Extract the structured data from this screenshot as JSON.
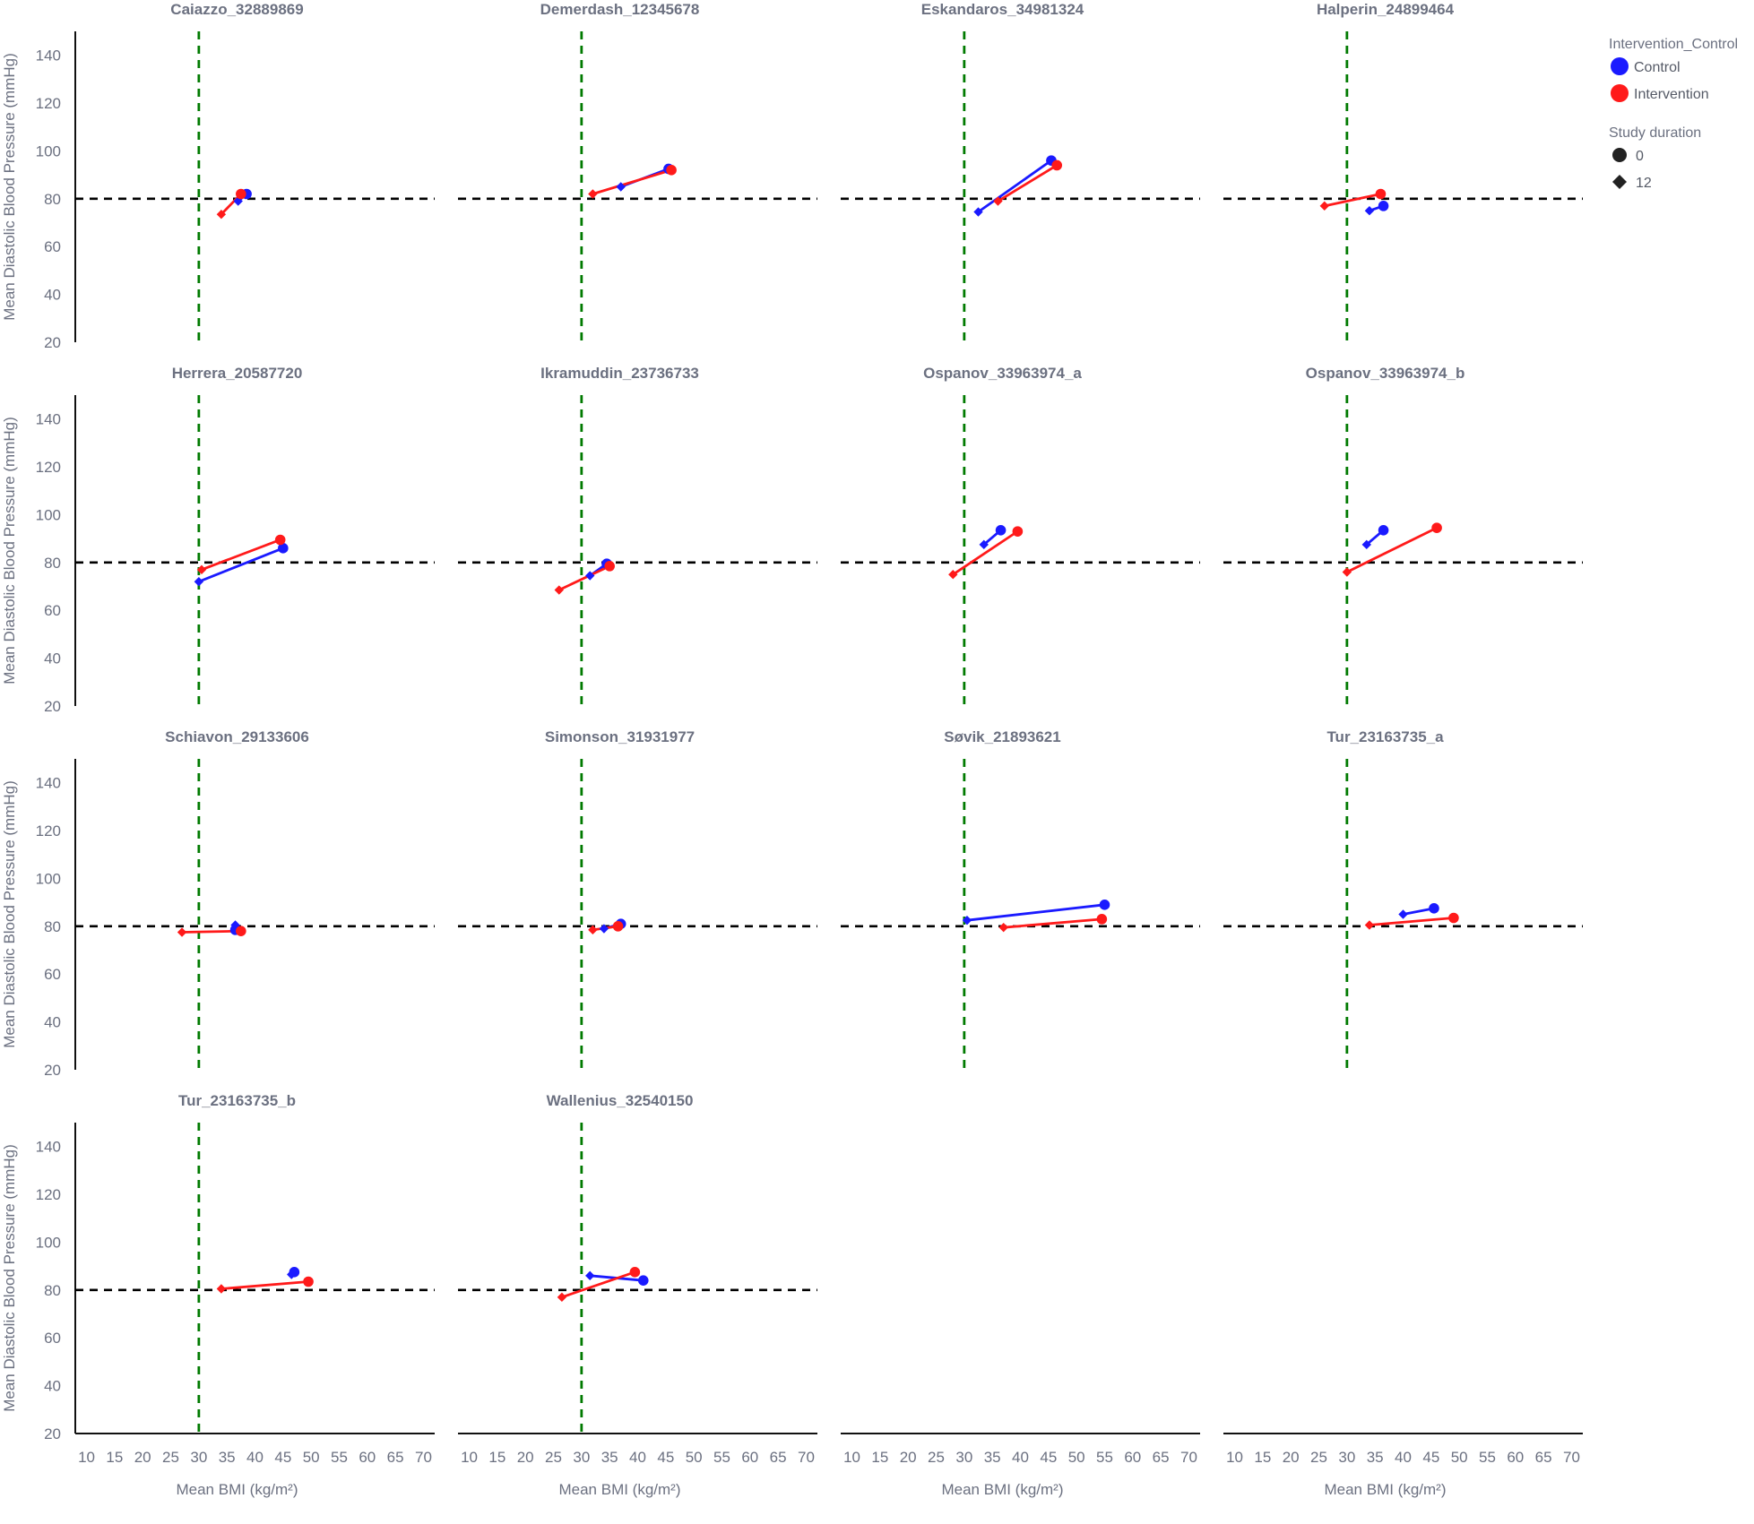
{
  "chart_data": {
    "type": "line",
    "facet_layout": "4 columns x 4 rows",
    "xlabel": "Mean BMI (kg/m²)",
    "ylabel": "Mean Diastolic Blood Pressure (mmHg)",
    "xlim": [
      8,
      72
    ],
    "ylim": [
      20,
      150
    ],
    "x_ticks": [
      10,
      15,
      20,
      25,
      30,
      35,
      40,
      45,
      50,
      55,
      60,
      65,
      70
    ],
    "y_ticks": [
      20,
      40,
      60,
      80,
      100,
      120,
      140
    ],
    "reference_lines": {
      "horizontal": {
        "y": 80,
        "color": "#000000",
        "style": "dashed"
      },
      "vertical": {
        "x": 30,
        "color": "#007a00",
        "style": "dashed"
      }
    },
    "grid": false,
    "legend_placement": "top-right",
    "legend": {
      "color_title": "Intervention_Control",
      "color_entries": [
        {
          "label": "Control",
          "color": "#1a1aff"
        },
        {
          "label": "Intervention",
          "color": "#ff1a1a"
        }
      ],
      "shape_title": "Study duration",
      "shape_entries": [
        {
          "label": "0",
          "shape": "circle"
        },
        {
          "label": "12",
          "shape": "diamond"
        }
      ]
    },
    "panels": [
      {
        "title": "Caiazzo_32889869",
        "series": [
          {
            "group": "Control",
            "points": [
              {
                "duration": "0",
                "x": 38.5,
                "y": 82
              },
              {
                "duration": "12",
                "x": 37,
                "y": 79
              }
            ]
          },
          {
            "group": "Intervention",
            "points": [
              {
                "duration": "0",
                "x": 37.5,
                "y": 82
              },
              {
                "duration": "12",
                "x": 34,
                "y": 73.5
              }
            ]
          }
        ]
      },
      {
        "title": "Demerdash_12345678",
        "series": [
          {
            "group": "Control",
            "points": [
              {
                "duration": "0",
                "x": 45.5,
                "y": 92.5
              },
              {
                "duration": "12",
                "x": 37,
                "y": 85
              }
            ]
          },
          {
            "group": "Intervention",
            "points": [
              {
                "duration": "0",
                "x": 46,
                "y": 92
              },
              {
                "duration": "12",
                "x": 32,
                "y": 82
              }
            ]
          }
        ]
      },
      {
        "title": "Eskandaros_34981324",
        "series": [
          {
            "group": "Control",
            "points": [
              {
                "duration": "0",
                "x": 45.5,
                "y": 96
              },
              {
                "duration": "12",
                "x": 32.5,
                "y": 74.5
              }
            ]
          },
          {
            "group": "Intervention",
            "points": [
              {
                "duration": "0",
                "x": 46.5,
                "y": 94
              },
              {
                "duration": "12",
                "x": 36,
                "y": 79
              }
            ]
          }
        ]
      },
      {
        "title": "Halperin_24899464",
        "series": [
          {
            "group": "Control",
            "points": [
              {
                "duration": "0",
                "x": 36.5,
                "y": 77
              },
              {
                "duration": "12",
                "x": 34,
                "y": 75
              }
            ]
          },
          {
            "group": "Intervention",
            "points": [
              {
                "duration": "0",
                "x": 36,
                "y": 82
              },
              {
                "duration": "12",
                "x": 26,
                "y": 77
              }
            ]
          }
        ]
      },
      {
        "title": "Herrera_20587720",
        "series": [
          {
            "group": "Control",
            "points": [
              {
                "duration": "0",
                "x": 45,
                "y": 86
              },
              {
                "duration": "12",
                "x": 30,
                "y": 72
              }
            ]
          },
          {
            "group": "Intervention",
            "points": [
              {
                "duration": "0",
                "x": 44.5,
                "y": 89.5
              },
              {
                "duration": "12",
                "x": 30.5,
                "y": 77
              }
            ]
          }
        ]
      },
      {
        "title": "Ikramuddin_23736733",
        "series": [
          {
            "group": "Control",
            "points": [
              {
                "duration": "0",
                "x": 34.5,
                "y": 79.5
              },
              {
                "duration": "12",
                "x": 31.5,
                "y": 74.5
              }
            ]
          },
          {
            "group": "Intervention",
            "points": [
              {
                "duration": "0",
                "x": 35,
                "y": 78.5
              },
              {
                "duration": "12",
                "x": 26,
                "y": 68.5
              }
            ]
          }
        ]
      },
      {
        "title": "Ospanov_33963974_a",
        "series": [
          {
            "group": "Control",
            "points": [
              {
                "duration": "0",
                "x": 36.5,
                "y": 93.5
              },
              {
                "duration": "12",
                "x": 33.5,
                "y": 87.5
              }
            ]
          },
          {
            "group": "Intervention",
            "points": [
              {
                "duration": "0",
                "x": 39.5,
                "y": 93
              },
              {
                "duration": "12",
                "x": 28,
                "y": 75
              }
            ]
          }
        ]
      },
      {
        "title": "Ospanov_33963974_b",
        "series": [
          {
            "group": "Control",
            "points": [
              {
                "duration": "0",
                "x": 36.5,
                "y": 93.5
              },
              {
                "duration": "12",
                "x": 33.5,
                "y": 87.5
              }
            ]
          },
          {
            "group": "Intervention",
            "points": [
              {
                "duration": "0",
                "x": 46,
                "y": 94.5
              },
              {
                "duration": "12",
                "x": 30,
                "y": 76
              }
            ]
          }
        ]
      },
      {
        "title": "Schiavon_29133606",
        "series": [
          {
            "group": "Control",
            "points": [
              {
                "duration": "0",
                "x": 36.5,
                "y": 78.5
              },
              {
                "duration": "12",
                "x": 36.5,
                "y": 80.5
              }
            ]
          },
          {
            "group": "Intervention",
            "points": [
              {
                "duration": "0",
                "x": 37.5,
                "y": 78
              },
              {
                "duration": "12",
                "x": 27,
                "y": 77.5
              }
            ]
          }
        ]
      },
      {
        "title": "Simonson_31931977",
        "series": [
          {
            "group": "Control",
            "points": [
              {
                "duration": "0",
                "x": 37,
                "y": 81
              },
              {
                "duration": "12",
                "x": 34,
                "y": 79
              }
            ]
          },
          {
            "group": "Intervention",
            "points": [
              {
                "duration": "0",
                "x": 36.5,
                "y": 80
              },
              {
                "duration": "12",
                "x": 32,
                "y": 78.5
              }
            ]
          }
        ]
      },
      {
        "title": "Søvik_21893621",
        "series": [
          {
            "group": "Control",
            "points": [
              {
                "duration": "0",
                "x": 55,
                "y": 89
              },
              {
                "duration": "12",
                "x": 30.5,
                "y": 82.5
              }
            ]
          },
          {
            "group": "Intervention",
            "points": [
              {
                "duration": "0",
                "x": 54.5,
                "y": 83
              },
              {
                "duration": "12",
                "x": 37,
                "y": 79.5
              }
            ]
          }
        ]
      },
      {
        "title": "Tur_23163735_a",
        "series": [
          {
            "group": "Control",
            "points": [
              {
                "duration": "0",
                "x": 45.5,
                "y": 87.5
              },
              {
                "duration": "12",
                "x": 40,
                "y": 85
              }
            ]
          },
          {
            "group": "Intervention",
            "points": [
              {
                "duration": "0",
                "x": 49,
                "y": 83.5
              },
              {
                "duration": "12",
                "x": 34,
                "y": 80.5
              }
            ]
          }
        ]
      },
      {
        "title": "Tur_23163735_b",
        "series": [
          {
            "group": "Control",
            "points": [
              {
                "duration": "0",
                "x": 47,
                "y": 87.5
              },
              {
                "duration": "12",
                "x": 46.5,
                "y": 86.5
              }
            ]
          },
          {
            "group": "Intervention",
            "points": [
              {
                "duration": "0",
                "x": 49.5,
                "y": 83.5
              },
              {
                "duration": "12",
                "x": 34,
                "y": 80.5
              }
            ]
          }
        ]
      },
      {
        "title": "Wallenius_32540150",
        "series": [
          {
            "group": "Control",
            "points": [
              {
                "duration": "0",
                "x": 41,
                "y": 84
              },
              {
                "duration": "12",
                "x": 31.5,
                "y": 86
              }
            ]
          },
          {
            "group": "Intervention",
            "points": [
              {
                "duration": "0",
                "x": 39.5,
                "y": 87.5
              },
              {
                "duration": "12",
                "x": 26.5,
                "y": 77
              }
            ]
          }
        ]
      }
    ]
  }
}
